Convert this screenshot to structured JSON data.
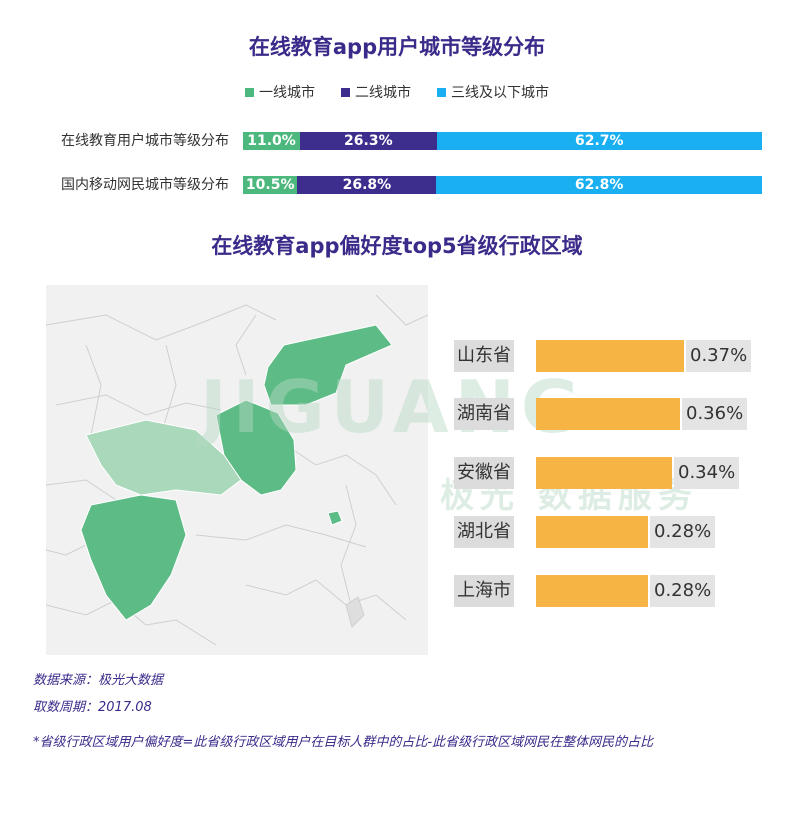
{
  "titles": {
    "city_chart": "在线教育app用户城市等级分布",
    "province_chart": "在线教育app偏好度top5省级行政区域"
  },
  "chart_data": [
    {
      "type": "bar",
      "stacked": true,
      "orientation": "horizontal",
      "title": "在线教育app用户城市等级分布",
      "categories": [
        "在线教育用户城市等级分布",
        "国内移动网民城市等级分布"
      ],
      "series": [
        {
          "name": "一线城市",
          "color": "#4db87d",
          "values": [
            11.0,
            10.5
          ],
          "labels": [
            "11.0%",
            "10.5%"
          ]
        },
        {
          "name": "二线城市",
          "color": "#3d2d8c",
          "values": [
            26.3,
            26.8
          ],
          "labels": [
            "26.3%",
            "26.8%"
          ]
        },
        {
          "name": "三线及以下城市",
          "color": "#1aaff0",
          "values": [
            62.7,
            62.8
          ],
          "labels": [
            "62.7%",
            "62.8%"
          ]
        }
      ],
      "legend_position": "top",
      "xlim": [
        0,
        100
      ]
    },
    {
      "type": "bar",
      "orientation": "horizontal",
      "title": "在线教育app偏好度top5省级行政区域",
      "categories": [
        "山东省",
        "湖南省",
        "安徽省",
        "湖北省",
        "上海市"
      ],
      "values": [
        0.37,
        0.36,
        0.34,
        0.28,
        0.28
      ],
      "labels": [
        "0.37%",
        "0.36%",
        "0.34%",
        "0.28%",
        "0.28%"
      ],
      "color": "#f6b444",
      "xlim": [
        0,
        0.37
      ]
    }
  ],
  "map": {
    "highlight_color": "#5dbb85",
    "secondary_color": "#a9d8bb",
    "highlighted_regions": [
      "山东省",
      "湖南省",
      "安徽省",
      "湖北省",
      "上海市"
    ]
  },
  "watermark": {
    "brand": "JIGUANG",
    "subtitle": "极光 数据服务"
  },
  "notes": {
    "source": "数据来源：极光大数据",
    "period": "取数周期：2017.08",
    "footnote": "*省级行政区域用户偏好度=此省级行政区域用户在目标人群中的占比-此省级行政区域网民在整体网民的占比"
  }
}
